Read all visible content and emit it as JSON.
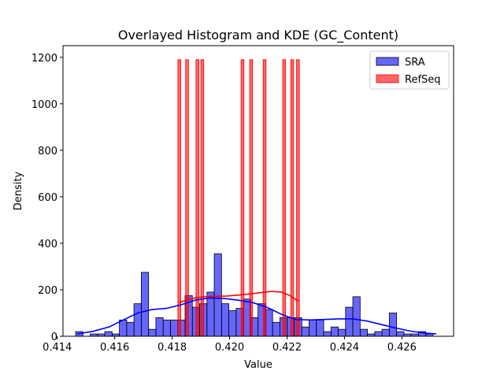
{
  "chart_data": {
    "type": "histogram",
    "title": "Overlayed Histogram and KDE (GC_Content)",
    "xlabel": "Value",
    "ylabel": "Density",
    "xlim": [
      0.4142,
      0.4278
    ],
    "ylim": [
      0,
      1250
    ],
    "x_ticks": [
      0.414,
      0.416,
      0.418,
      0.42,
      0.422,
      0.424,
      0.426
    ],
    "x_tick_labels": [
      "0.414",
      "0.416",
      "0.418",
      "0.420",
      "0.422",
      "0.424",
      "0.426"
    ],
    "y_ticks": [
      0,
      200,
      400,
      600,
      800,
      1000,
      1200
    ],
    "y_tick_labels": [
      "0",
      "200",
      "400",
      "600",
      "800",
      "1000",
      "1200"
    ],
    "grid": false,
    "legend_position": "top-right",
    "series": [
      {
        "name": "SRA",
        "kind": "histogram",
        "color": "#0000ff",
        "alpha": 0.6,
        "bin_start": 0.41464,
        "bin_width": 0.000254,
        "values": [
          20,
          0,
          10,
          10,
          20,
          10,
          70,
          60,
          140,
          275,
          30,
          80,
          70,
          70,
          70,
          175,
          125,
          140,
          190,
          355,
          140,
          110,
          120,
          160,
          80,
          140,
          115,
          60,
          80,
          80,
          80,
          40,
          70,
          70,
          20,
          40,
          30,
          125,
          170,
          30,
          10,
          20,
          30,
          100,
          20,
          10,
          10,
          20,
          10
        ]
      },
      {
        "name": "RefSeq",
        "kind": "histogram",
        "color": "#ff0000",
        "alpha": 0.6,
        "bars": [
          {
            "x": 0.41825,
            "value": 1190
          },
          {
            "x": 0.41852,
            "value": 1190
          },
          {
            "x": 0.41888,
            "value": 1190
          },
          {
            "x": 0.41905,
            "value": 1190
          },
          {
            "x": 0.42045,
            "value": 1190
          },
          {
            "x": 0.42075,
            "value": 1190
          },
          {
            "x": 0.42122,
            "value": 1190
          },
          {
            "x": 0.4219,
            "value": 1190
          },
          {
            "x": 0.42218,
            "value": 1190
          },
          {
            "x": 0.42238,
            "value": 1190
          }
        ],
        "bar_width": 0.0001
      }
    ],
    "kde": [
      {
        "series": "SRA",
        "color": "#0000ff",
        "points": [
          [
            0.4147,
            10
          ],
          [
            0.4152,
            20
          ],
          [
            0.4158,
            40
          ],
          [
            0.4163,
            70
          ],
          [
            0.4168,
            100
          ],
          [
            0.4173,
            115
          ],
          [
            0.4178,
            120
          ],
          [
            0.4183,
            135
          ],
          [
            0.4188,
            155
          ],
          [
            0.4193,
            165
          ],
          [
            0.4198,
            163
          ],
          [
            0.4203,
            155
          ],
          [
            0.4208,
            145
          ],
          [
            0.4213,
            125
          ],
          [
            0.4218,
            95
          ],
          [
            0.4223,
            72
          ],
          [
            0.4228,
            70
          ],
          [
            0.4233,
            72
          ],
          [
            0.4238,
            75
          ],
          [
            0.4243,
            75
          ],
          [
            0.4248,
            65
          ],
          [
            0.4253,
            50
          ],
          [
            0.4258,
            35
          ],
          [
            0.4263,
            22
          ],
          [
            0.4268,
            14
          ],
          [
            0.4272,
            10
          ]
        ]
      },
      {
        "series": "RefSeq",
        "color": "#ff0000",
        "points": [
          [
            0.41825,
            145
          ],
          [
            0.4185,
            155
          ],
          [
            0.4188,
            165
          ],
          [
            0.4191,
            170
          ],
          [
            0.4195,
            172
          ],
          [
            0.4199,
            173
          ],
          [
            0.4203,
            177
          ],
          [
            0.4207,
            182
          ],
          [
            0.4211,
            188
          ],
          [
            0.4215,
            193
          ],
          [
            0.4218,
            190
          ],
          [
            0.4221,
            175
          ],
          [
            0.4224,
            150
          ]
        ]
      }
    ]
  }
}
